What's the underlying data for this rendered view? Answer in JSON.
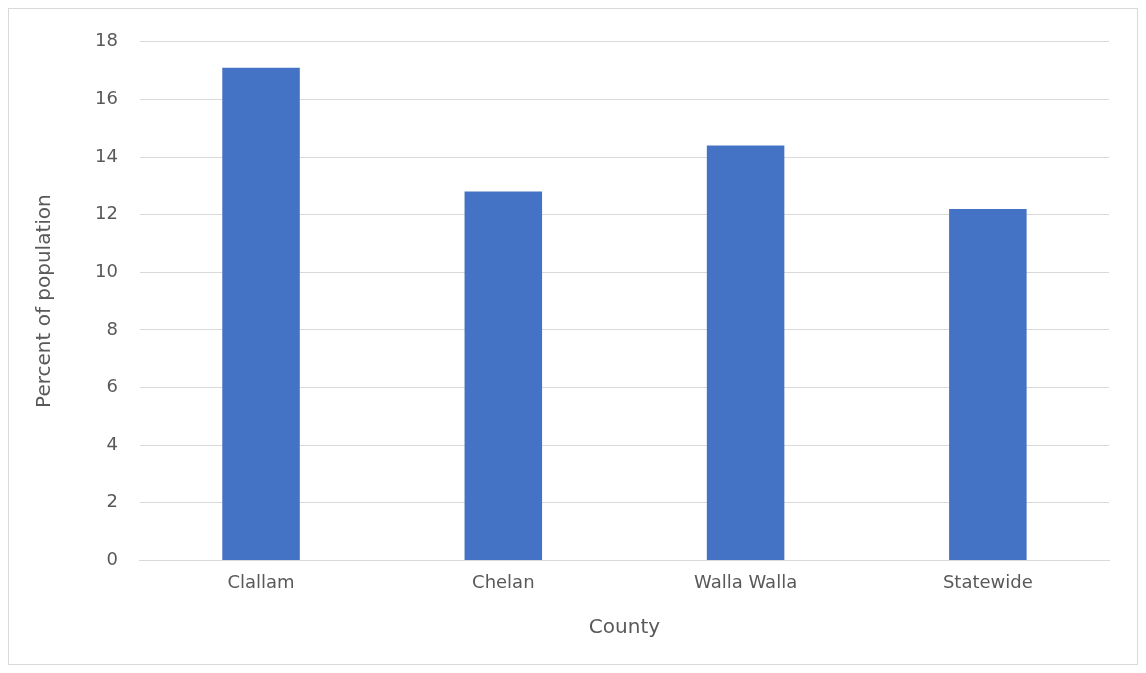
{
  "chart_data": {
    "type": "bar",
    "xlabel": "County",
    "ylabel": "Percent of population",
    "categories": [
      "Clallam",
      "Chelan",
      "Walla Walla",
      "Statewide"
    ],
    "values": [
      17.1,
      12.8,
      14.4,
      12.2
    ],
    "color": "#4472c4",
    "ylim": [
      0,
      18
    ],
    "yticks": [
      0,
      2,
      4,
      6,
      8,
      10,
      12,
      14,
      16,
      18
    ],
    "grid": "y",
    "legend": false
  }
}
